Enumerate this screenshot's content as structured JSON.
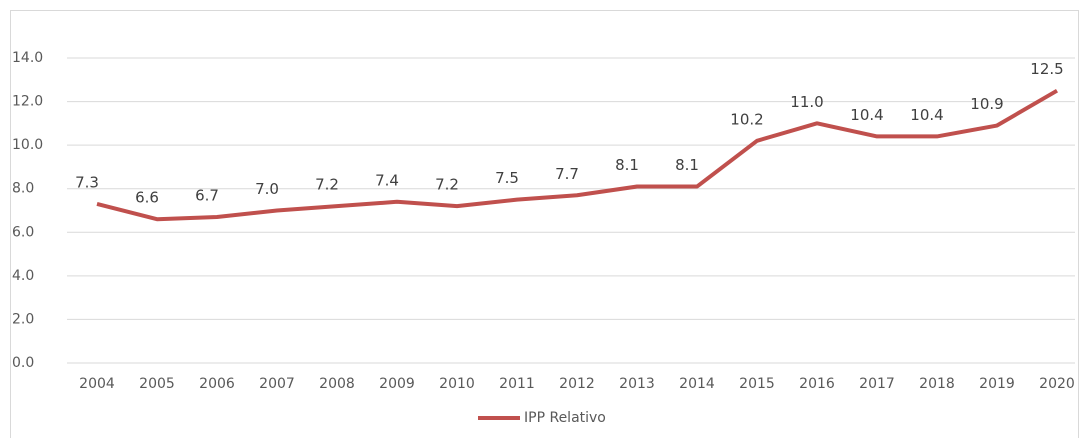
{
  "chart_data": {
    "type": "line",
    "categories": [
      "2004",
      "2005",
      "2006",
      "2007",
      "2008",
      "2009",
      "2010",
      "2011",
      "2012",
      "2013",
      "2014",
      "2015",
      "2016",
      "2017",
      "2018",
      "2019",
      "2020"
    ],
    "series": [
      {
        "name": "IPP Relativo",
        "color": "#c0504d",
        "values": [
          7.3,
          6.6,
          6.7,
          7.0,
          7.2,
          7.4,
          7.2,
          7.5,
          7.7,
          8.1,
          8.1,
          10.2,
          11.0,
          10.4,
          10.4,
          10.9,
          12.5
        ],
        "value_labels": [
          "7.3",
          "6.6",
          "6.7",
          "7.0",
          "7.2",
          "7.4",
          "7.2",
          "7.5",
          "7.7",
          "8.1",
          "8.1",
          "10.2",
          "11.0",
          "10.4",
          "10.4",
          "10.9",
          "12.5"
        ]
      }
    ],
    "ylim": [
      0,
      14
    ],
    "yticks": [
      {
        "value": 0,
        "label": "0.0"
      },
      {
        "value": 2,
        "label": "2.0"
      },
      {
        "value": 4,
        "label": "4.0"
      },
      {
        "value": 6,
        "label": "6.0"
      },
      {
        "value": 8,
        "label": "8.0"
      },
      {
        "value": 10,
        "label": "10.0"
      },
      {
        "value": 12,
        "label": "12.0"
      },
      {
        "value": 14,
        "label": "14.0"
      }
    ],
    "grid": true,
    "legend": "bottom"
  }
}
